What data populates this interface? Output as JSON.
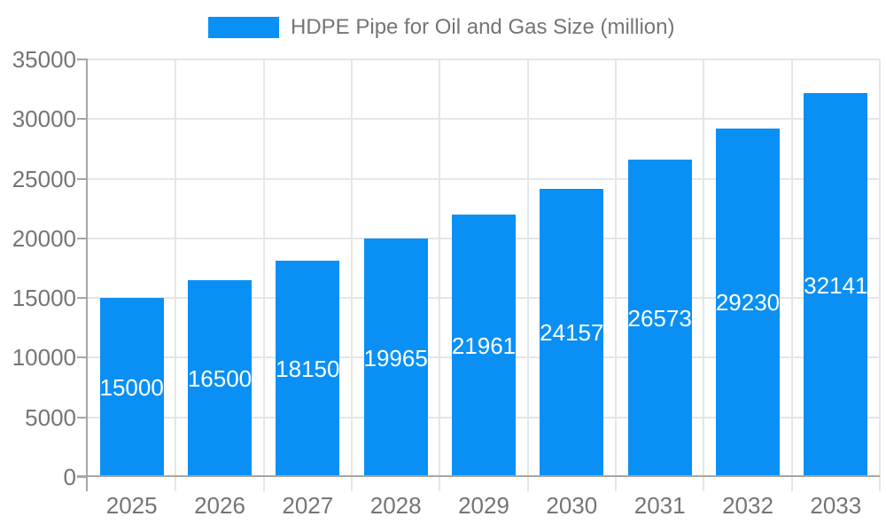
{
  "chart_data": {
    "type": "bar",
    "title": "",
    "legend_label": "HDPE Pipe for Oil and Gas Size (million)",
    "legend_position": "top",
    "categories": [
      "2025",
      "2026",
      "2027",
      "2028",
      "2029",
      "2030",
      "2031",
      "2032",
      "2033"
    ],
    "values": [
      15000,
      16500,
      18150,
      19965,
      21961,
      24157,
      26573,
      29230,
      32141
    ],
    "xlabel": "",
    "ylabel": "",
    "ylim": [
      0,
      35000
    ],
    "yticks": [
      0,
      5000,
      10000,
      15000,
      20000,
      25000,
      30000,
      35000
    ],
    "grid": true,
    "data_labels_inside_bars": true,
    "colors": {
      "bar": "#0a90f5",
      "data_label": "#ffffff",
      "axis_text": "#757575",
      "legend_text": "#757575",
      "gridline": "#e6e6e6",
      "axis_line": "#a6a6a6",
      "background": "#ffffff"
    }
  }
}
